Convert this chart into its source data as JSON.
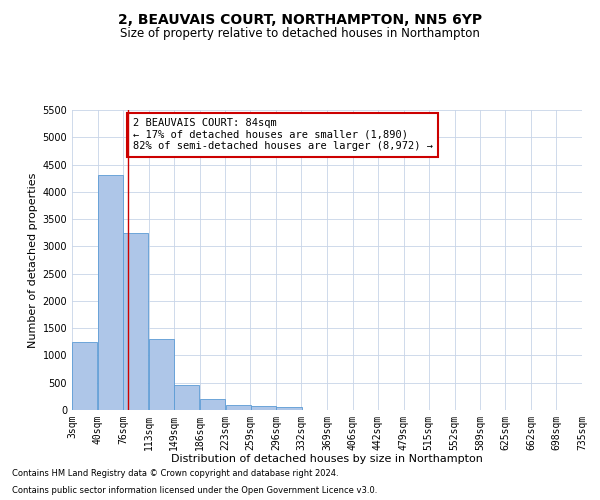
{
  "title1": "2, BEAUVAIS COURT, NORTHAMPTON, NN5 6YP",
  "title2": "Size of property relative to detached houses in Northampton",
  "xlabel": "Distribution of detached houses by size in Northampton",
  "ylabel": "Number of detached properties",
  "footer1": "Contains HM Land Registry data © Crown copyright and database right 2024.",
  "footer2": "Contains public sector information licensed under the Open Government Licence v3.0.",
  "annotation_title": "2 BEAUVAIS COURT: 84sqm",
  "annotation_line1": "← 17% of detached houses are smaller (1,890)",
  "annotation_line2": "82% of semi-detached houses are larger (8,972) →",
  "property_size": 84,
  "bins": [
    3,
    40,
    76,
    113,
    149,
    186,
    223,
    259,
    296,
    332,
    369,
    406,
    442,
    479,
    515,
    552,
    589,
    625,
    662,
    698,
    735
  ],
  "values": [
    1250,
    4300,
    3250,
    1300,
    450,
    200,
    100,
    70,
    60,
    0,
    0,
    0,
    0,
    0,
    0,
    0,
    0,
    0,
    0,
    0
  ],
  "bar_color": "#aec6e8",
  "bar_edge_color": "#5b9bd5",
  "vline_color": "#cc0000",
  "vline_x": 84,
  "annotation_box_color": "#cc0000",
  "background_color": "#ffffff",
  "grid_color": "#c8d4e8",
  "ylim": [
    0,
    5500
  ],
  "yticks": [
    0,
    500,
    1000,
    1500,
    2000,
    2500,
    3000,
    3500,
    4000,
    4500,
    5000,
    5500
  ],
  "title1_fontsize": 10,
  "title2_fontsize": 8.5,
  "xlabel_fontsize": 8,
  "ylabel_fontsize": 8,
  "tick_fontsize": 7,
  "annotation_fontsize": 7.5,
  "footer_fontsize": 6
}
